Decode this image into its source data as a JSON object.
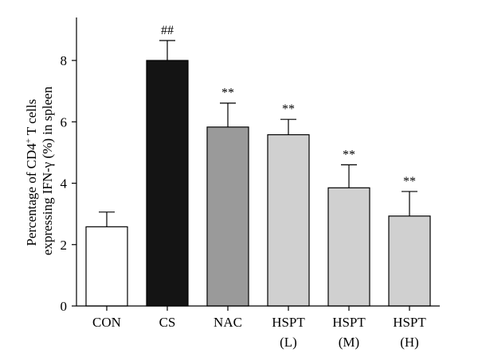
{
  "chart_data": {
    "type": "bar",
    "ylabel_line1": "Percentage of CD4",
    "ylabel_sup": "+",
    "ylabel_line1_end": " T cells",
    "ylabel_line2": "expressing IFN-γ (%) in spleen",
    "ylim": [
      0,
      9.4
    ],
    "yticks": [
      0,
      2,
      4,
      6,
      8
    ],
    "grid": false,
    "categories": [
      {
        "line1": "CON",
        "line2": ""
      },
      {
        "line1": "CS",
        "line2": ""
      },
      {
        "line1": "NAC",
        "line2": ""
      },
      {
        "line1": "HSPT",
        "line2": "(L)"
      },
      {
        "line1": "HSPT",
        "line2": "(M)"
      },
      {
        "line1": "HSPT",
        "line2": "(H)"
      }
    ],
    "values": [
      2.58,
      8.0,
      5.83,
      5.58,
      3.85,
      2.93
    ],
    "errors": [
      0.48,
      0.65,
      0.78,
      0.5,
      0.75,
      0.8
    ],
    "annotations": [
      "",
      "##",
      "**",
      "**",
      "**",
      "**"
    ],
    "colors": [
      "#ffffff",
      "#141414",
      "#9a9a9a",
      "#d0d0d0",
      "#d0d0d0",
      "#d0d0d0"
    ]
  }
}
